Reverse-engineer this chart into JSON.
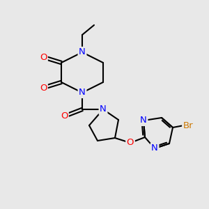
{
  "bg_color": "#e8e8e8",
  "atom_colors": {
    "N": "#0000ff",
    "O": "#ff0000",
    "Br": "#cc7700"
  },
  "bond_color": "#000000",
  "lw": 1.5,
  "fs": 9.5
}
